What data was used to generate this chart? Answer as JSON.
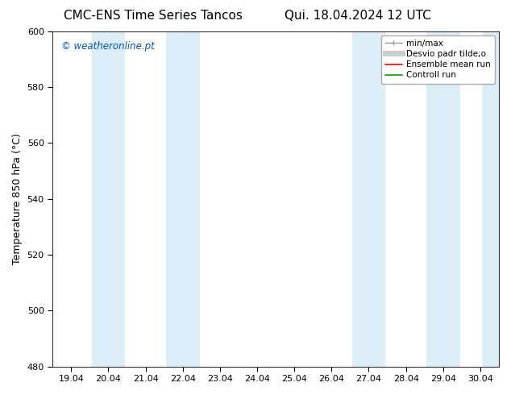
{
  "title_left": "CMC-ENS Time Series Tancos",
  "title_right": "Qui. 18.04.2024 12 UTC",
  "ylabel": "Temperature 850 hPa (°C)",
  "ylim": [
    480,
    600
  ],
  "yticks": [
    480,
    500,
    520,
    540,
    560,
    580,
    600
  ],
  "xtick_labels": [
    "19.04",
    "20.04",
    "21.04",
    "22.04",
    "23.04",
    "24.04",
    "25.04",
    "26.04",
    "27.04",
    "28.04",
    "29.04",
    "30.04"
  ],
  "xtick_positions": [
    0,
    1,
    2,
    3,
    4,
    5,
    6,
    7,
    8,
    9,
    10,
    11
  ],
  "xlim": [
    -0.5,
    11.5
  ],
  "shaded_bands": [
    {
      "x_start": 0.55,
      "x_end": 1.45,
      "color": "#ddeef8"
    },
    {
      "x_start": 2.55,
      "x_end": 3.45,
      "color": "#ddeef8"
    },
    {
      "x_start": 7.55,
      "x_end": 8.45,
      "color": "#ddeef8"
    },
    {
      "x_start": 9.55,
      "x_end": 10.45,
      "color": "#ddeef8"
    },
    {
      "x_start": 11.05,
      "x_end": 11.5,
      "color": "#ddeef8"
    }
  ],
  "watermark_text": "© weatheronline.pt",
  "watermark_color": "#0055bb",
  "legend_items": [
    {
      "label": "min/max",
      "color": "#999999",
      "lw": 1.2
    },
    {
      "label": "Desvio padr tilde;o",
      "color": "#cccccc",
      "lw": 5
    },
    {
      "label": "Ensemble mean run",
      "color": "#ff0000",
      "lw": 1.2
    },
    {
      "label": "Controll run",
      "color": "#00aa00",
      "lw": 1.2
    }
  ],
  "bg_color": "#ffffff",
  "plot_bg_color": "#ffffff",
  "title_fontsize": 11,
  "tick_fontsize": 8,
  "ylabel_fontsize": 9,
  "legend_fontsize": 7.5
}
